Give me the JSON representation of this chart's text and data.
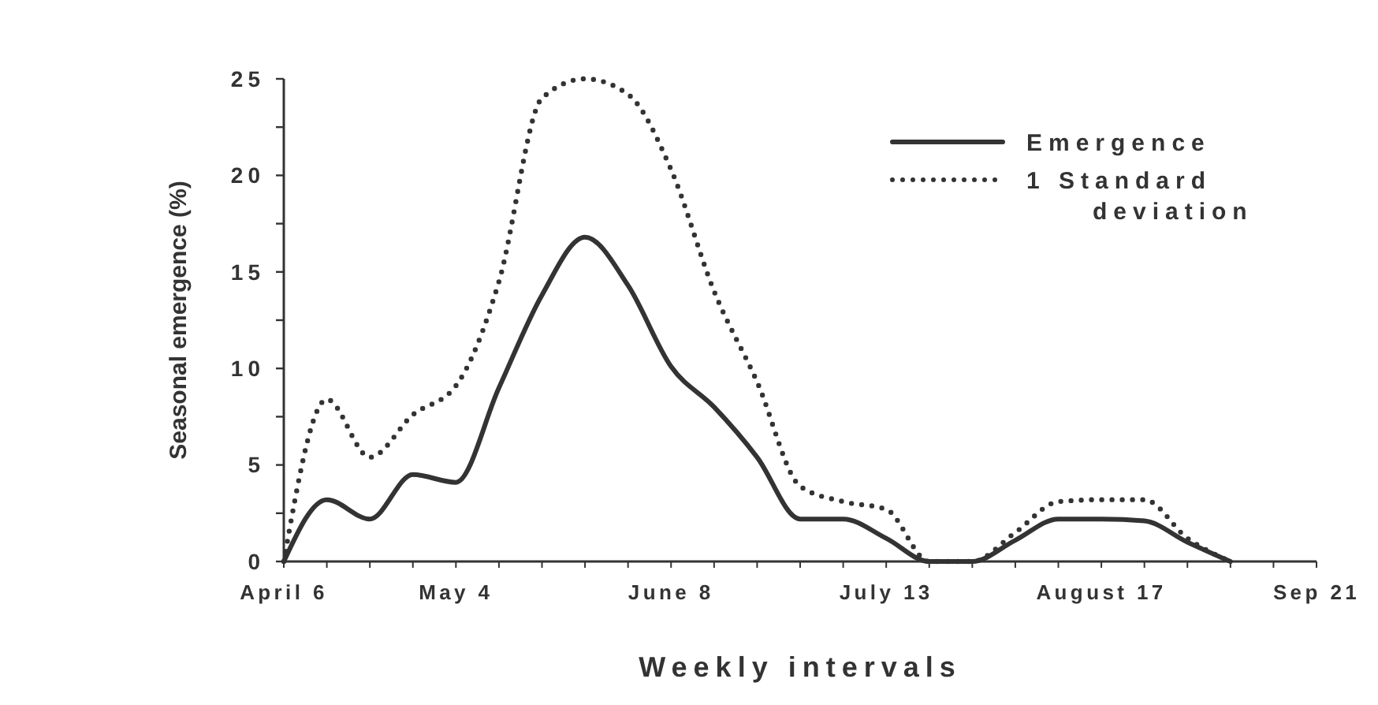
{
  "chart_data": {
    "type": "line",
    "xlabel": "Weekly intervals",
    "ylabel": "Seasonal emergence (%)",
    "categories": [
      "April 6",
      null,
      null,
      null,
      "May 4",
      null,
      null,
      null,
      null,
      "June 8",
      null,
      null,
      null,
      null,
      "July 13",
      null,
      null,
      null,
      null,
      "August 17",
      null,
      null,
      null,
      null,
      "Sep 21"
    ],
    "series": [
      {
        "name": "Emergence",
        "color": "#333333",
        "line_style": "solid",
        "values": [
          0,
          3.2,
          2.2,
          4.5,
          4.1,
          9.0,
          13.8,
          16.8,
          14.3,
          10.1,
          8.0,
          5.4,
          2.2,
          2.2,
          1.2,
          0,
          0,
          1.1,
          2.2,
          2.2,
          2.1,
          1.0,
          0,
          null,
          null
        ]
      },
      {
        "name": "1 Standard deviation",
        "color": "#333333",
        "line_style": "dotted",
        "values": [
          0,
          8.4,
          5.4,
          7.6,
          9.1,
          14.5,
          24.0,
          25.0,
          24.2,
          20.3,
          14.0,
          9.3,
          3.9,
          3.1,
          2.7,
          0,
          0,
          1.5,
          3.1,
          3.2,
          3.2,
          1.2,
          0,
          null,
          null
        ]
      }
    ],
    "ylim": [
      0,
      25
    ],
    "yticks": [
      0,
      {
        "value": 2.5,
        "label": null
      },
      5,
      {
        "value": 7.5,
        "label": null
      },
      10,
      {
        "value": 12.5,
        "label": null
      },
      15,
      {
        "value": 17.5,
        "label": null
      },
      20,
      {
        "value": 22.5,
        "label": null
      },
      25
    ],
    "grid": false,
    "legend": "top right",
    "marker": "none"
  }
}
